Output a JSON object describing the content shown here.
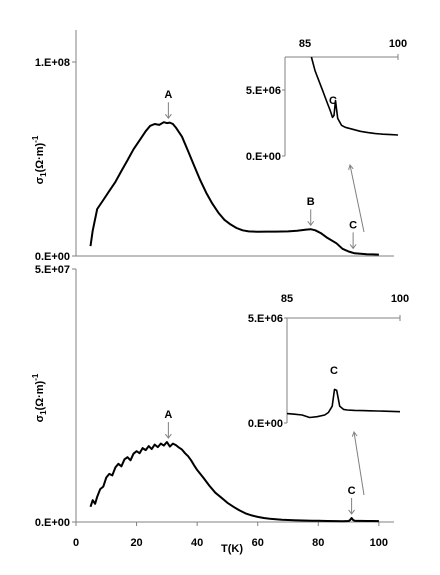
{
  "chart_data": [
    {
      "type": "line",
      "panel": "top",
      "ylabel": "σ1(Ω·m)-1",
      "y_ticks": [
        "0.E+00",
        "1.E+08"
      ],
      "ylim": [
        0,
        125000000
      ],
      "xlim": [
        0,
        105
      ],
      "series": [
        {
          "x": [
            4.8,
            5.5,
            7,
            9,
            11,
            13,
            15,
            17,
            19,
            21,
            23,
            24.5,
            26,
            27.5,
            29,
            30,
            31,
            32,
            33,
            35,
            37,
            39,
            41,
            43,
            45,
            47,
            49,
            51,
            53,
            55,
            57,
            60,
            63,
            66,
            70,
            73,
            76,
            77.5,
            79,
            81,
            83,
            86,
            88,
            90,
            92,
            94,
            96,
            98,
            100
          ],
          "y": [
            5500000,
            14000000,
            26000000,
            31000000,
            36000000,
            41000000,
            47000000,
            53000000,
            59000000,
            64000000,
            69000000,
            72000000,
            73000000,
            72500000,
            74000000,
            73500000,
            73800000,
            73000000,
            71000000,
            66000000,
            58000000,
            50000000,
            42000000,
            35000000,
            29000000,
            24000000,
            20000000,
            17500000,
            15500000,
            14200000,
            13600000,
            13400000,
            13500000,
            13500000,
            13600000,
            14000000,
            14600000,
            14800000,
            14200000,
            12500000,
            10000000,
            7000000,
            4000000,
            2500000,
            1500000,
            1200000,
            1000000,
            900000,
            800000
          ]
        }
      ],
      "annotations": [
        {
          "label": "A",
          "x": 30.5,
          "y": 74000000
        },
        {
          "label": "B",
          "x": 77.5,
          "y": 14800000
        },
        {
          "label": "C",
          "x": 91.5,
          "y": 2000000
        }
      ],
      "inset": {
        "x_ticks": [
          "85",
          "100"
        ],
        "y_ticks": [
          "0.E+00",
          "5.E+06"
        ],
        "xlim": [
          85,
          100
        ],
        "ylim": [
          0,
          5000000
        ],
        "label": "C",
        "series": [
          {
            "x": [
              88.5,
              89,
              89.5,
              90,
              90.5,
              91,
              91.3,
              91.5,
              91.7,
              92,
              92.5,
              93,
              94,
              95,
              96,
              97,
              98,
              99,
              100
            ],
            "y": [
              5000000,
              4300000,
              3800000,
              3300000,
              2800000,
              2300000,
              1950000,
              2050000,
              2800000,
              1900000,
              1550000,
              1450000,
              1350000,
              1250000,
              1180000,
              1130000,
              1100000,
              1080000,
              1060000
            ]
          }
        ]
      }
    },
    {
      "type": "line",
      "panel": "bottom",
      "xlabel": "T(K)",
      "ylabel": "σ1(Ω·m)-1",
      "x_ticks": [
        "0",
        "20",
        "40",
        "60",
        "80",
        "100"
      ],
      "y_ticks": [
        "0.E+00",
        "5.E+07"
      ],
      "ylim": [
        0,
        50000000
      ],
      "xlim": [
        0,
        105
      ],
      "series": [
        {
          "x": [
            4.8,
            5.5,
            6.3,
            7,
            8,
            9,
            10,
            11,
            12,
            13,
            14,
            15,
            16,
            17,
            18,
            19,
            20,
            21,
            22,
            23,
            24,
            25,
            26,
            27,
            28,
            29,
            30,
            31,
            32,
            33,
            34,
            35,
            36,
            37,
            38,
            39,
            40,
            42,
            44,
            46,
            48,
            50,
            52,
            54,
            56,
            58,
            60,
            62,
            64,
            66,
            68,
            70,
            72,
            75,
            78,
            80,
            83,
            86,
            88,
            89,
            90,
            90.5,
            91,
            91.5,
            92,
            93,
            94,
            96,
            98,
            100
          ],
          "y": [
            3000000,
            4300000,
            3600000,
            5000000,
            6500000,
            7000000,
            8800000,
            9500000,
            9200000,
            10800000,
            11500000,
            11000000,
            12400000,
            12800000,
            12200000,
            13500000,
            14000000,
            13600000,
            14600000,
            14200000,
            15000000,
            14400000,
            15300000,
            14800000,
            15500000,
            15100000,
            15800000,
            14900000,
            15500000,
            15200000,
            14700000,
            14300000,
            13600000,
            13000000,
            12200000,
            11200000,
            10300000,
            8800000,
            7200000,
            5800000,
            4800000,
            3800000,
            3000000,
            2300000,
            1700000,
            1300000,
            1000000,
            800000,
            650000,
            550000,
            450000,
            400000,
            350000,
            300000,
            260000,
            230000,
            200000,
            180000,
            160000,
            170000,
            200000,
            400000,
            800000,
            400000,
            250000,
            220000,
            210000,
            200000,
            190000,
            180000
          ]
        }
      ],
      "annotations": [
        {
          "label": "A",
          "x": 30.5,
          "y": 15800000
        },
        {
          "label": "C",
          "x": 91,
          "y": 800000
        }
      ],
      "inset": {
        "x_ticks": [
          "85",
          "100"
        ],
        "y_ticks": [
          "0.E+00",
          "5.E+06"
        ],
        "xlim": [
          85,
          100
        ],
        "ylim": [
          0,
          5000000
        ],
        "label": "C",
        "series": [
          {
            "x": [
              85,
              86,
              87,
              88,
              89,
              90,
              90.5,
              91,
              91.3,
              91.6,
              92,
              92.5,
              93,
              94,
              95,
              96,
              97,
              98,
              99,
              100
            ],
            "y": [
              450000,
              420000,
              380000,
              260000,
              300000,
              380000,
              500000,
              800000,
              1600000,
              1550000,
              800000,
              650000,
              620000,
              600000,
              590000,
              580000,
              570000,
              560000,
              550000,
              540000
            ]
          }
        ]
      }
    }
  ]
}
